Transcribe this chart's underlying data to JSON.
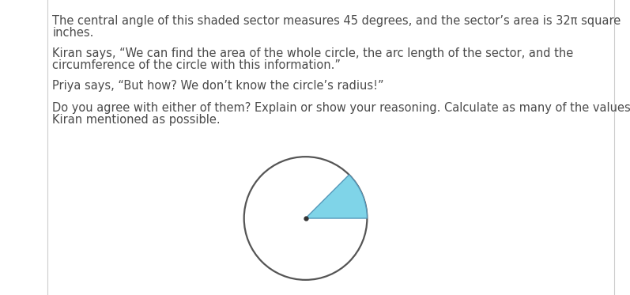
{
  "background_color": "#ffffff",
  "text_color": "#4a4a4a",
  "font_size": 10.5,
  "line1": "The central angle of this shaded sector measures 45 degrees, and the sector’s area is 32π square",
  "line2": "inches.",
  "line3": "Kiran says, “We can find the area of the whole circle, the arc length of the sector, and the",
  "line4": "circumference of the circle with this information.”",
  "line5": "Priya says, “But how? We don’t know the circle’s radius!”",
  "line6": "Do you agree with either of them? Explain or show your reasoning. Calculate as many of the values",
  "line7": "Kiran mentioned as possible.",
  "sector_color": "#7fd4e8",
  "sector_edge_color": "#5599bb",
  "circle_edge_color": "#555555",
  "circle_linewidth": 1.6,
  "sector_linewidth": 1.0,
  "dot_color": "#333333",
  "border_color": "#cccccc"
}
